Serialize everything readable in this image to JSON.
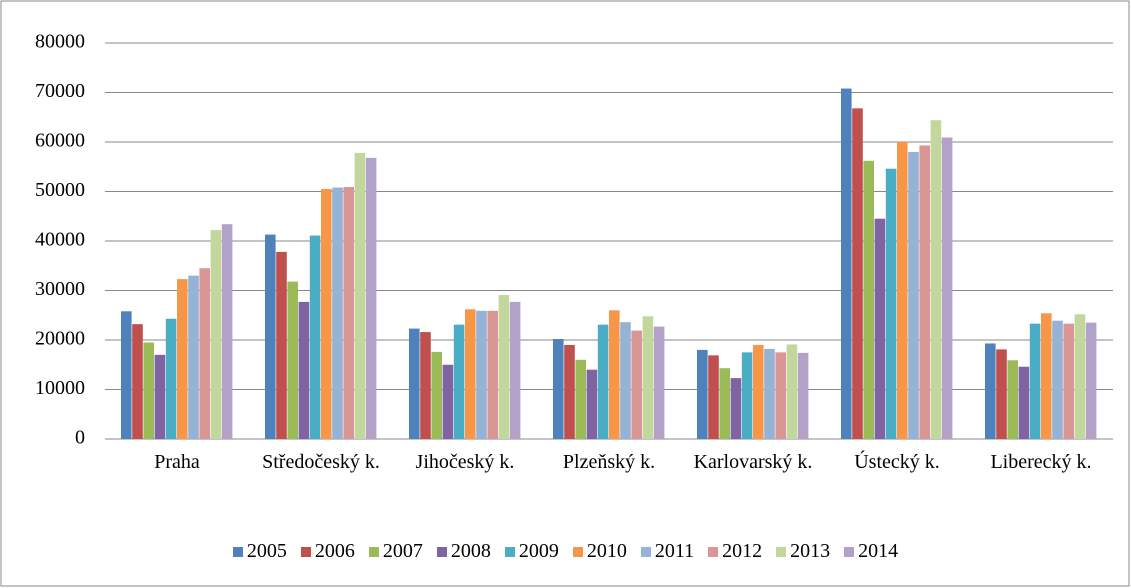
{
  "chart_data": {
    "type": "bar",
    "categories": [
      "Praha",
      "Středočeský k.",
      "Jihočeský k.",
      "Plzeňský k.",
      "Karlovarský k.",
      "Ústecký k.",
      "Liberecký k."
    ],
    "series": [
      {
        "name": "2005",
        "color": "#4F81BD",
        "values": [
          25800,
          41300,
          22300,
          20200,
          18000,
          70800,
          19300
        ]
      },
      {
        "name": "2006",
        "color": "#C0504D",
        "values": [
          23200,
          37800,
          21600,
          19000,
          16900,
          66800,
          18100
        ]
      },
      {
        "name": "2007",
        "color": "#9BBB59",
        "values": [
          19500,
          31800,
          17600,
          16000,
          14300,
          56200,
          15900
        ]
      },
      {
        "name": "2008",
        "color": "#8064A2",
        "values": [
          17000,
          27700,
          15000,
          14000,
          12300,
          44500,
          14600
        ]
      },
      {
        "name": "2009",
        "color": "#4BACC6",
        "values": [
          24300,
          41100,
          23100,
          23100,
          17500,
          54600,
          23300
        ]
      },
      {
        "name": "2010",
        "color": "#F79646",
        "values": [
          32300,
          50500,
          26200,
          26000,
          19000,
          60000,
          25400
        ]
      },
      {
        "name": "2011",
        "color": "#95B3D7",
        "values": [
          33000,
          50800,
          25900,
          23600,
          18200,
          58000,
          23900
        ]
      },
      {
        "name": "2012",
        "color": "#D99694",
        "values": [
          34500,
          50900,
          25900,
          21900,
          17500,
          59300,
          23300
        ]
      },
      {
        "name": "2013",
        "color": "#C3D69B",
        "values": [
          42200,
          57800,
          29100,
          24800,
          19100,
          64400,
          25200
        ]
      },
      {
        "name": "2014",
        "color": "#B3A2C7",
        "values": [
          43400,
          56800,
          27700,
          22700,
          17400,
          60900,
          23500
        ]
      }
    ],
    "ylim": [
      0,
      80000
    ],
    "yticks": [
      0,
      10000,
      20000,
      30000,
      40000,
      50000,
      60000,
      70000,
      80000
    ],
    "grid": true,
    "legend": "bottom"
  }
}
